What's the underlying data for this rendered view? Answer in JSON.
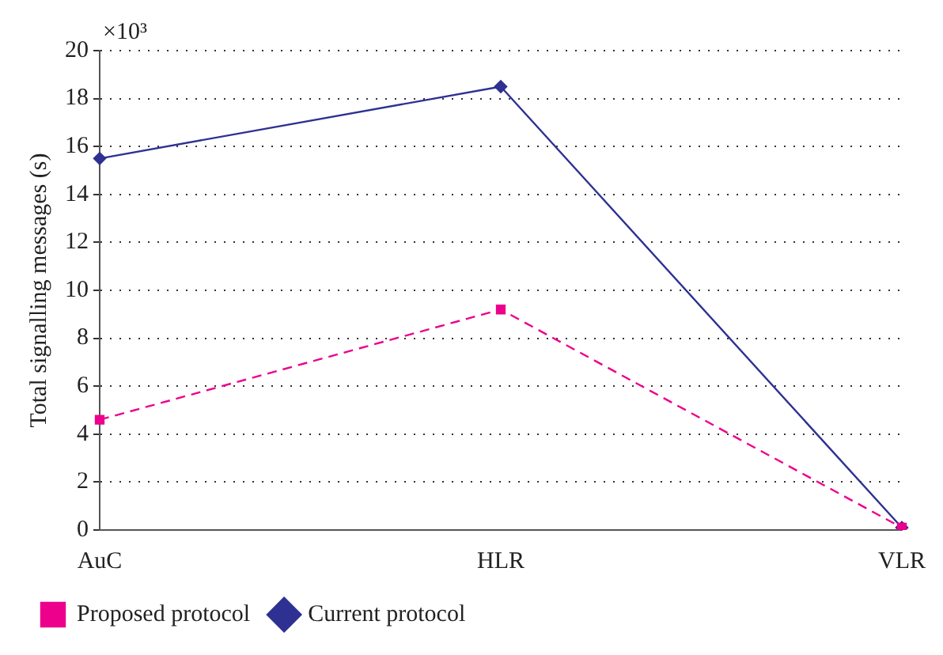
{
  "chart_data": {
    "type": "line",
    "ylabel": "Total signalling messages (s)",
    "annotations": [
      "×10³"
    ],
    "categories": [
      "AuC",
      "HLR",
      "VLR"
    ],
    "series": [
      {
        "name": "Current protocol",
        "color": "#2e3192",
        "values": [
          15.5,
          18.5,
          0.1
        ],
        "marker": "diamond",
        "line_style": "solid"
      },
      {
        "name": "Proposed protocol",
        "color": "#ec008c",
        "values": [
          4.6,
          9.2,
          0.1
        ],
        "marker": "square",
        "line_style": "dashed"
      }
    ],
    "ylim": [
      0,
      20
    ],
    "yticks": [
      0,
      2,
      4,
      6,
      8,
      10,
      12,
      14,
      16,
      18,
      20
    ],
    "grid": "y",
    "legend": "bottom left"
  }
}
